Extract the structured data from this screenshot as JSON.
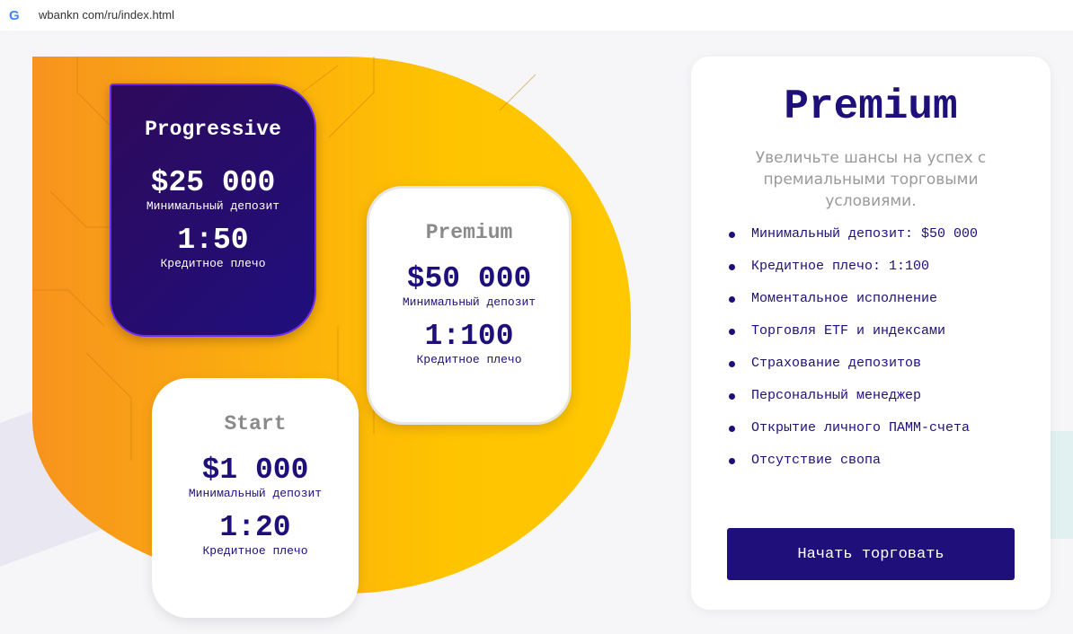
{
  "browser": {
    "url": "wbankn com/ru/index.html",
    "icon": "google-icon"
  },
  "cards": [
    {
      "title": "Progressive",
      "deposit": "$25 000",
      "deposit_label": "Минимальный депозит",
      "leverage": "1:50",
      "leverage_label": "Кредитное плечо"
    },
    {
      "title": "Premium",
      "deposit": "$50 000",
      "deposit_label": "Минимальный депозит",
      "leverage": "1:100",
      "leverage_label": "Кредитное плечо"
    },
    {
      "title": "Start",
      "deposit": "$1 000",
      "deposit_label": "Минимальный депозит",
      "leverage": "1:20",
      "leverage_label": "Кредитное плечо"
    }
  ],
  "panel": {
    "title": "Premium",
    "subtitle": "Увеличьте шансы на успех с премиальными торговыми условиями.",
    "features": [
      "Минимальный депозит: $50 000",
      "Кредитное плечо: 1:100",
      "Моментальное исполнение",
      "Торговля ETF и индексами",
      "Страхование депозитов",
      "Персональный менеджер",
      "Открытие личного ПАММ-счета",
      "Отсутствие свопа"
    ],
    "button": "Начать торговать"
  },
  "colors": {
    "accent": "#1e0f7a",
    "orange": "#f7931e",
    "yellow": "#ffc400"
  }
}
